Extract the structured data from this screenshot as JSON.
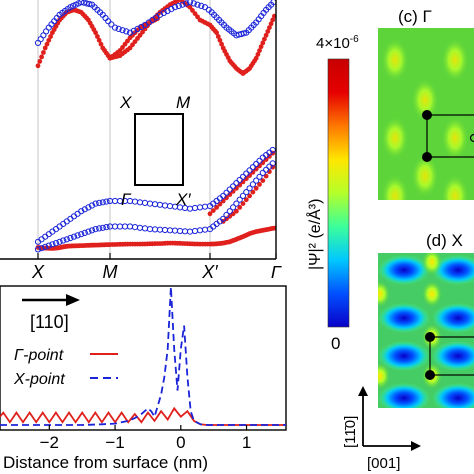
{
  "panels": {
    "c_label": "(c) Γ",
    "d_label": "(d) X"
  },
  "colorbar": {
    "max_label": "4×10",
    "max_exp": "-6",
    "min_label": "0",
    "title": "|Ψ|² (e/Å³)",
    "colormap": [
      "#0a00c8",
      "#0050ff",
      "#00c8ff",
      "#3cff9a",
      "#b4ff2a",
      "#ffe600",
      "#ff7800",
      "#e60000",
      "#c80000"
    ]
  },
  "bz_inset": {
    "X": "X",
    "M": "M",
    "Gamma": "Γ",
    "Xp": "X′"
  },
  "arrows": {
    "dir_110": "[110]",
    "dir_1bar10": "[11̄0]",
    "dir_001": "[001]"
  },
  "colors": {
    "red": "#e0201c",
    "blue": "#1a24d8",
    "green_map": "#5cd43a"
  },
  "chart_data": [
    {
      "type": "scatter",
      "panel": "band structure",
      "x_ticks": [
        "X",
        "M",
        "X′",
        "Γ"
      ],
      "series": [
        {
          "marker": "filled circle",
          "color": "#e0201c",
          "bands": [
            {
              "x": [
                0.0,
                0.1,
                0.2,
                0.28,
                0.35,
                0.42,
                0.5,
                0.6,
                0.7,
                0.8,
                0.9,
                1.0,
                1.1,
                1.2,
                1.3,
                1.4,
                1.5,
                1.6,
                1.7,
                1.8,
                1.9,
                2.0,
                2.1,
                2.2,
                2.3,
                2.4,
                2.5,
                2.6,
                2.7,
                2.8,
                2.9,
                3.0
              ],
              "y": [
                0.18,
                0.15,
                0.14,
                0.16,
                0.2,
                0.23,
                0.24,
                0.25,
                0.26,
                0.27,
                0.28,
                0.29,
                0.3,
                0.31,
                0.31,
                0.32,
                0.33,
                0.35,
                0.34,
                0.32,
                0.31,
                0.31,
                0.32,
                0.35,
                0.4,
                0.5,
                0.6,
                0.72,
                0.8,
                0.85,
                0.9,
                0.95
              ]
            },
            {
              "x": [
                0.0,
                0.1,
                0.2,
                0.3,
                0.4,
                0.5,
                0.6,
                0.7,
                0.8,
                0.9,
                1.0,
                1.1,
                1.2,
                1.3,
                1.4,
                1.5
              ],
              "y": [
                7.3,
                8.0,
                8.6,
                9.1,
                9.4,
                9.5,
                9.4,
                9.1,
                8.6,
                8.0,
                7.6,
                7.9,
                8.4,
                8.8,
                9.0,
                9.2
              ]
            },
            {
              "x": [
                1.0,
                1.1,
                1.2,
                1.3,
                1.4,
                1.5,
                1.6,
                1.7,
                1.8,
                1.9,
                2.0,
                2.1,
                2.2,
                2.3,
                2.4,
                2.5,
                2.6,
                2.7,
                2.8,
                2.9,
                3.0
              ],
              "y": [
                7.6,
                7.7,
                8.0,
                8.5,
                9.0,
                9.4,
                9.7,
                9.9,
                9.6,
                9.1,
                8.9,
                8.6,
                8.0,
                7.5,
                7.2,
                7.0,
                7.2,
                7.6,
                8.2,
                8.8,
                9.4
              ]
            },
            {
              "x": [
                2.0,
                2.2,
                2.4,
                2.6,
                2.8,
                3.0
              ],
              "y": [
                1.5,
                2.0,
                2.5,
                3.0,
                3.5,
                4.0
              ]
            },
            {
              "x": [
                2.2,
                2.4,
                2.6,
                2.8,
                3.0
              ],
              "y": [
                1.2,
                1.6,
                2.2,
                2.8,
                3.5
              ]
            }
          ]
        },
        {
          "marker": "open circle",
          "color": "#1a24d8",
          "bands": [
            {
              "x": [
                0.0,
                0.2,
                0.4,
                0.6,
                0.8,
                1.0,
                1.2,
                1.4,
                1.6,
                1.8,
                2.0,
                2.2,
                2.4,
                2.6,
                2.8,
                3.0
              ],
              "y": [
                0.1,
                0.3,
                0.5,
                0.7,
                0.9,
                1.0,
                1.0,
                0.9,
                0.85,
                0.8,
                0.9,
                1.3,
                1.9,
                2.5,
                3.1,
                3.6
              ]
            },
            {
              "x": [
                0.0,
                0.2,
                0.4,
                0.6,
                0.8,
                1.0,
                1.2,
                1.4,
                1.6,
                1.8,
                2.0,
                2.2,
                2.4,
                2.6,
                2.8,
                3.0
              ],
              "y": [
                0.4,
                0.8,
                1.2,
                1.6,
                1.9,
                2.0,
                2.0,
                1.9,
                1.8,
                1.7,
                1.8,
                2.2,
                2.7,
                3.2,
                3.7,
                4.1
              ]
            },
            {
              "x": [
                0.0,
                0.15,
                0.3,
                0.45,
                0.6,
                0.75,
                0.9,
                1.05,
                1.2,
                1.35,
                1.5
              ],
              "y": [
                8.2,
                8.8,
                9.3,
                9.6,
                9.8,
                9.7,
                9.3,
                8.8,
                8.6,
                8.9,
                9.3
              ]
            },
            {
              "x": [
                1.5,
                1.65,
                1.8,
                1.95,
                2.1,
                2.25,
                2.4,
                2.55,
                2.7,
                2.85,
                3.0
              ],
              "y": [
                9.3,
                9.6,
                9.8,
                9.6,
                9.2,
                8.8,
                8.5,
                8.6,
                9.0,
                9.5,
                9.9
              ]
            }
          ]
        }
      ]
    },
    {
      "type": "line",
      "panel": "charge density profile",
      "xlabel": "Distance from surface (nm)",
      "xlim": [
        -2.75,
        1.6
      ],
      "x_ticks": [
        -2,
        -1,
        0,
        1
      ],
      "series": [
        {
          "name": "Γ-point",
          "style": "solid",
          "color": "#e0201c",
          "x": [
            -2.75,
            -2.7,
            -2.6,
            -2.5,
            -2.4,
            -2.3,
            -2.2,
            -2.1,
            -2.0,
            -1.9,
            -1.8,
            -1.7,
            -1.6,
            -1.5,
            -1.4,
            -1.3,
            -1.2,
            -1.1,
            -1.0,
            -0.9,
            -0.8,
            -0.7,
            -0.6,
            -0.5,
            -0.4,
            -0.3,
            -0.2,
            -0.1,
            0.0,
            0.1,
            0.2,
            0.3,
            0.4,
            0.6,
            1.0,
            1.6
          ],
          "y": [
            0.06,
            0.09,
            0.02,
            0.09,
            0.02,
            0.09,
            0.02,
            0.09,
            0.02,
            0.09,
            0.02,
            0.09,
            0.02,
            0.09,
            0.02,
            0.09,
            0.02,
            0.09,
            0.02,
            0.09,
            0.02,
            0.08,
            0.02,
            0.09,
            0.03,
            0.1,
            0.04,
            0.12,
            0.06,
            0.1,
            0.03,
            0.005,
            0.0,
            0.0,
            0.0,
            0.0
          ]
        },
        {
          "name": "X-point",
          "style": "dashed",
          "color": "#1a24d8",
          "x": [
            -2.75,
            -2.4,
            -2.0,
            -1.5,
            -1.2,
            -1.0,
            -0.9,
            -0.8,
            -0.7,
            -0.6,
            -0.5,
            -0.45,
            -0.4,
            -0.35,
            -0.3,
            -0.25,
            -0.2,
            -0.15,
            -0.1,
            -0.05,
            0.0,
            0.05,
            0.1,
            0.15,
            0.2,
            0.3,
            0.4,
            0.6,
            1.0,
            1.6
          ],
          "y": [
            0.0,
            0.0,
            0.0,
            0.0,
            0.005,
            0.01,
            0.02,
            0.03,
            0.05,
            0.08,
            0.12,
            0.1,
            0.06,
            0.14,
            0.22,
            0.35,
            0.55,
            1.0,
            0.55,
            0.25,
            0.55,
            0.72,
            0.35,
            0.1,
            0.03,
            0.005,
            0.0,
            0.0,
            0.0,
            0.0
          ]
        }
      ]
    }
  ]
}
